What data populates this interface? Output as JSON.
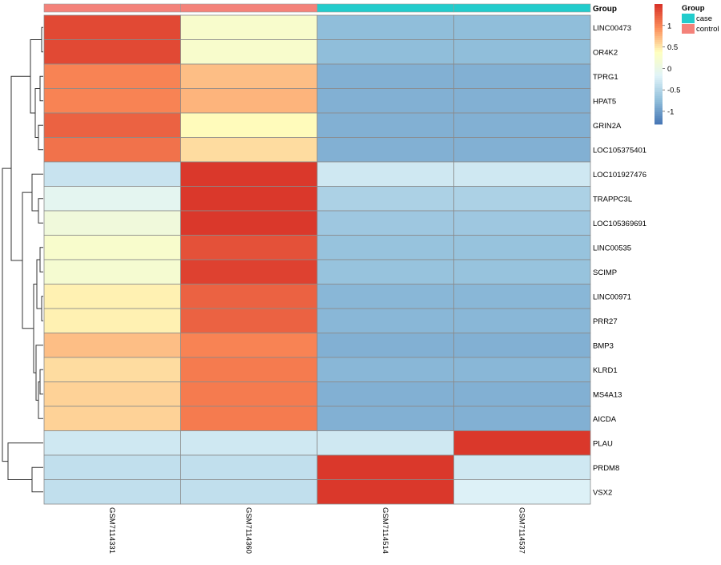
{
  "chart_data": {
    "type": "heatmap",
    "rows": [
      "LINC00473",
      "OR4K2",
      "TPRG1",
      "HPAT5",
      "GRIN2A",
      "LOC105375401",
      "LOC101927476",
      "TRAPPC3L",
      "LOC105369691",
      "LINC00535",
      "SCIMP",
      "LINC00971",
      "PRR27",
      "BMP3",
      "KLRD1",
      "MS4A13",
      "AICDA",
      "PLAU",
      "PRDM8",
      "VSX2"
    ],
    "columns": [
      "GSM7114331",
      "GSM7114360",
      "GSM7114514",
      "GSM7114537"
    ],
    "values": [
      [
        1.35,
        0.25,
        -0.75,
        -0.75
      ],
      [
        1.35,
        0.25,
        -0.75,
        -0.75
      ],
      [
        1.0,
        0.7,
        -0.85,
        -0.85
      ],
      [
        1.0,
        0.75,
        -0.85,
        -0.85
      ],
      [
        1.2,
        0.4,
        -0.85,
        -0.85
      ],
      [
        1.1,
        0.55,
        -0.85,
        -0.85
      ],
      [
        -0.35,
        1.45,
        -0.3,
        -0.3
      ],
      [
        -0.1,
        1.45,
        -0.55,
        -0.55
      ],
      [
        0.1,
        1.45,
        -0.65,
        -0.65
      ],
      [
        0.25,
        1.3,
        -0.7,
        -0.7
      ],
      [
        0.2,
        1.4,
        -0.7,
        -0.7
      ],
      [
        0.45,
        1.2,
        -0.8,
        -0.8
      ],
      [
        0.45,
        1.2,
        -0.8,
        -0.8
      ],
      [
        0.7,
        1.0,
        -0.85,
        -0.85
      ],
      [
        0.55,
        1.05,
        -0.8,
        -0.8
      ],
      [
        0.6,
        1.05,
        -0.85,
        -0.85
      ],
      [
        0.6,
        1.05,
        -0.85,
        -0.85
      ],
      [
        -0.3,
        -0.3,
        -0.3,
        1.45
      ],
      [
        -0.4,
        -0.4,
        1.45,
        -0.3
      ],
      [
        -0.4,
        -0.4,
        1.45,
        -0.2
      ]
    ],
    "column_groups": [
      "control",
      "control",
      "case",
      "case"
    ],
    "annotation_title": "Group",
    "group_legend": [
      {
        "name": "case",
        "color": "#22CCCC"
      },
      {
        "name": "control",
        "color": "#F4827A"
      }
    ],
    "color_scale": {
      "colors": [
        "#4575B4",
        "#91BFDB",
        "#E0F3F8",
        "#FFFFBF",
        "#FC8D59",
        "#D73027"
      ],
      "range": [
        -1.3,
        1.5
      ],
      "ticks": [
        1,
        0.5,
        0,
        -0.5,
        -1
      ],
      "tick_labels": [
        "1",
        "0.5",
        "0",
        "-0.5",
        "-1"
      ]
    },
    "row_dendrogram": true
  }
}
